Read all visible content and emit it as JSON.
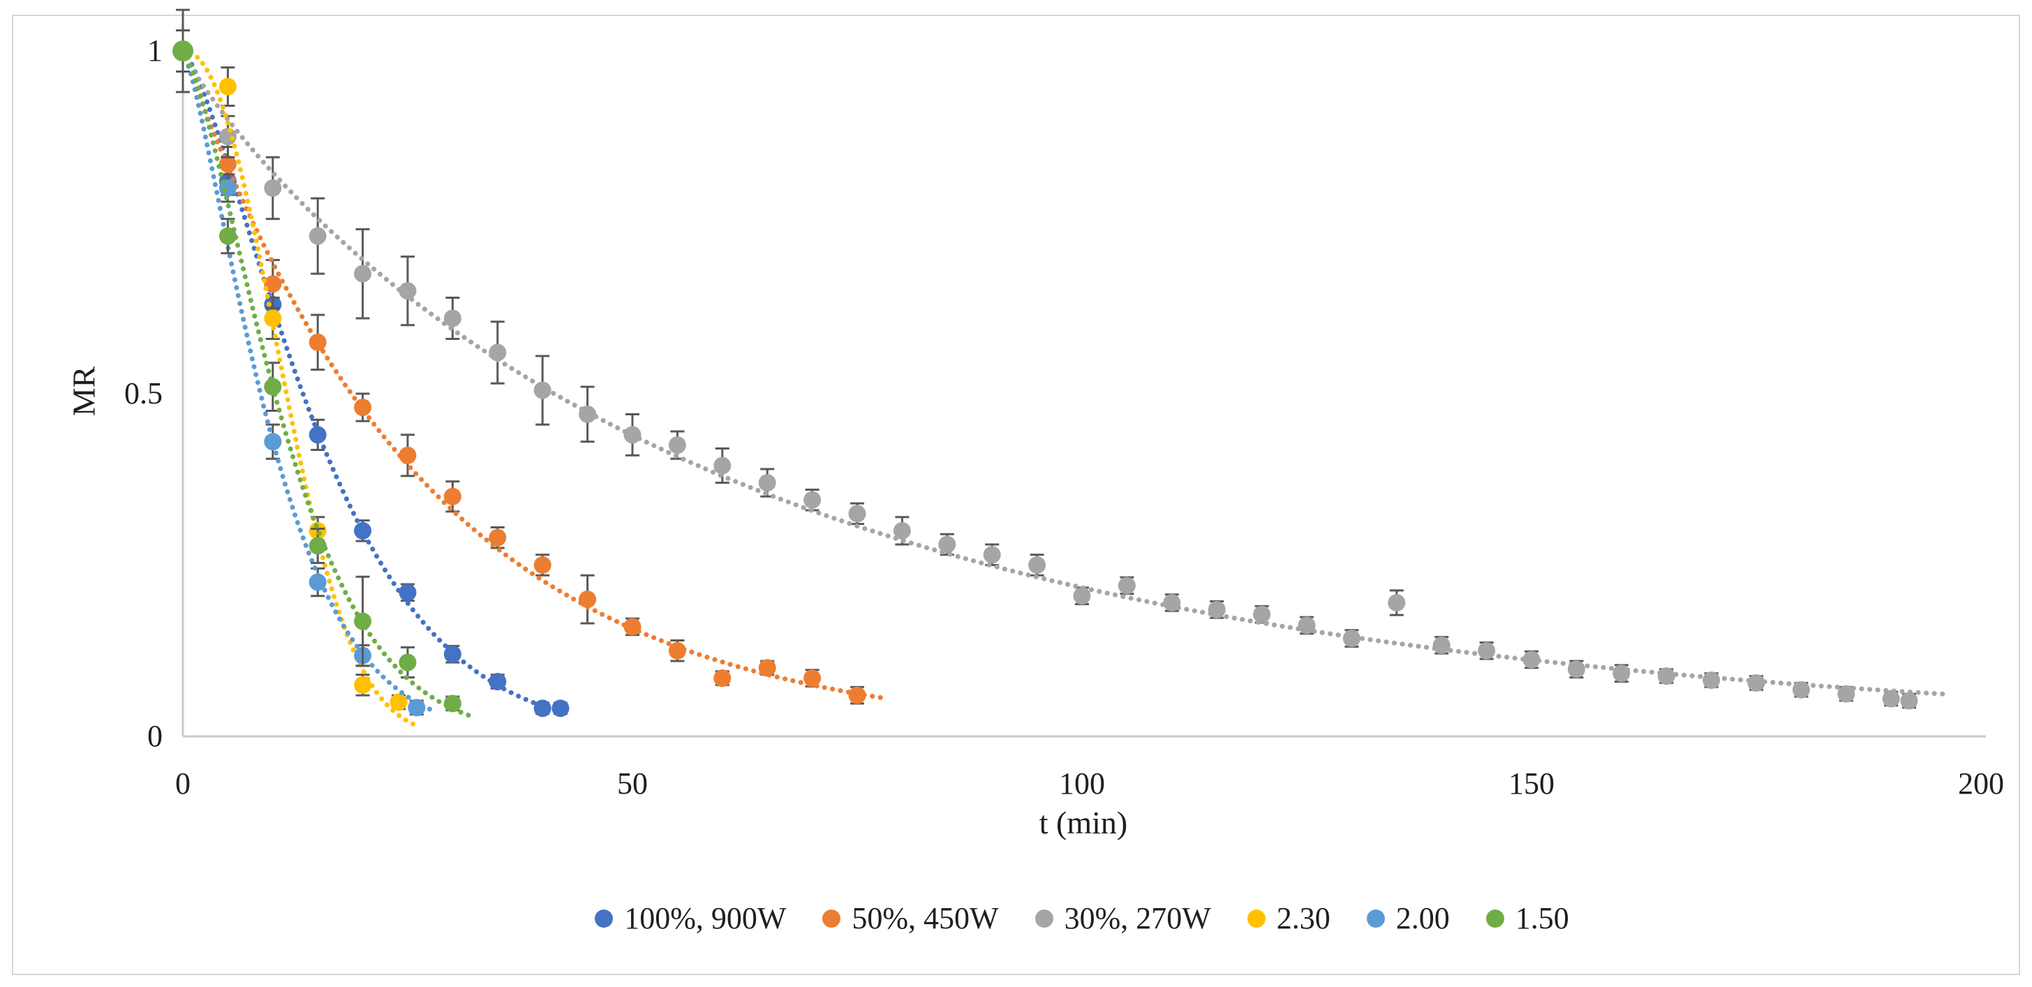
{
  "figure": {
    "background": "#FFFFFF",
    "border_color": "#D6D6D6"
  },
  "chart_data": {
    "type": "scatter",
    "title": "",
    "xlabel": "t (min)",
    "ylabel": "MR",
    "xlim": [
      0,
      200
    ],
    "ylim": [
      0,
      1
    ],
    "x_ticks": [
      "0",
      "50",
      "100",
      "150",
      "200"
    ],
    "x_tick_values": [
      0,
      50,
      100,
      150,
      200
    ],
    "y_ticks": [
      "0",
      "0.5",
      "1"
    ],
    "y_tick_values": [
      0,
      0.5,
      1
    ],
    "grid": false,
    "legend_position": "bottom-center",
    "marker_style": "circle-with-error-bars",
    "trendline_style": "dotted",
    "axis_color": "#C9C9C9",
    "error_bar_color": "#595959",
    "text_color": "#1F1F1F",
    "series": [
      {
        "name": "100%, 900W",
        "color": "#4472C4",
        "fit": {
          "model": "page",
          "k": 0.0199,
          "n": 1.37,
          "t_end": 43
        },
        "points": [
          {
            "t": 0,
            "mr": 1.0,
            "err": 0
          },
          {
            "t": 5,
            "mr": 0.81,
            "err": 0.02
          },
          {
            "t": 10,
            "mr": 0.63,
            "err": 0.025
          },
          {
            "t": 15,
            "mr": 0.44,
            "err": 0.022
          },
          {
            "t": 20,
            "mr": 0.3,
            "err": 0.015
          },
          {
            "t": 25,
            "mr": 0.21,
            "err": 0.012
          },
          {
            "t": 30,
            "mr": 0.12,
            "err": 0.012
          },
          {
            "t": 35,
            "mr": 0.08,
            "err": 0.01
          },
          {
            "t": 40,
            "mr": 0.041,
            "err": 0.008
          },
          {
            "t": 42,
            "mr": 0.041,
            "err": 0.008
          }
        ]
      },
      {
        "name": "50%, 450W",
        "color": "#ED7D31",
        "fit": {
          "model": "page",
          "k": 0.037,
          "n": 1.0,
          "t_end": 78
        },
        "points": [
          {
            "t": 0,
            "mr": 1.0,
            "err": 0.03
          },
          {
            "t": 5,
            "mr": 0.835,
            "err": 0.025
          },
          {
            "t": 10,
            "mr": 0.66,
            "err": 0.035
          },
          {
            "t": 15,
            "mr": 0.575,
            "err": 0.04
          },
          {
            "t": 20,
            "mr": 0.48,
            "err": 0.02
          },
          {
            "t": 25,
            "mr": 0.41,
            "err": 0.03
          },
          {
            "t": 30,
            "mr": 0.35,
            "err": 0.022
          },
          {
            "t": 35,
            "mr": 0.29,
            "err": 0.015
          },
          {
            "t": 40,
            "mr": 0.25,
            "err": 0.015
          },
          {
            "t": 45,
            "mr": 0.2,
            "err": 0.035
          },
          {
            "t": 50,
            "mr": 0.16,
            "err": 0.012
          },
          {
            "t": 55,
            "mr": 0.125,
            "err": 0.015
          },
          {
            "t": 60,
            "mr": 0.085,
            "err": 0.01
          },
          {
            "t": 65,
            "mr": 0.1,
            "err": 0.01
          },
          {
            "t": 70,
            "mr": 0.085,
            "err": 0.012
          },
          {
            "t": 75,
            "mr": 0.06,
            "err": 0.012
          }
        ]
      },
      {
        "name": "30%, 270W",
        "color": "#A5A5A5",
        "fit": {
          "model": "page",
          "k": 0.025,
          "n": 0.893,
          "t_end": 196
        },
        "points": [
          {
            "t": 0,
            "mr": 1.0,
            "err": 0.06
          },
          {
            "t": 5,
            "mr": 0.875,
            "err": 0.03
          },
          {
            "t": 10,
            "mr": 0.8,
            "err": 0.045
          },
          {
            "t": 15,
            "mr": 0.73,
            "err": 0.055
          },
          {
            "t": 20,
            "mr": 0.675,
            "err": 0.065
          },
          {
            "t": 25,
            "mr": 0.65,
            "err": 0.05
          },
          {
            "t": 30,
            "mr": 0.61,
            "err": 0.03
          },
          {
            "t": 35,
            "mr": 0.56,
            "err": 0.045
          },
          {
            "t": 40,
            "mr": 0.505,
            "err": 0.05
          },
          {
            "t": 45,
            "mr": 0.47,
            "err": 0.04
          },
          {
            "t": 50,
            "mr": 0.44,
            "err": 0.03
          },
          {
            "t": 55,
            "mr": 0.425,
            "err": 0.02
          },
          {
            "t": 60,
            "mr": 0.395,
            "err": 0.025
          },
          {
            "t": 65,
            "mr": 0.37,
            "err": 0.02
          },
          {
            "t": 70,
            "mr": 0.345,
            "err": 0.015
          },
          {
            "t": 75,
            "mr": 0.325,
            "err": 0.015
          },
          {
            "t": 80,
            "mr": 0.3,
            "err": 0.02
          },
          {
            "t": 85,
            "mr": 0.28,
            "err": 0.015
          },
          {
            "t": 90,
            "mr": 0.265,
            "err": 0.015
          },
          {
            "t": 95,
            "mr": 0.25,
            "err": 0.015
          },
          {
            "t": 100,
            "mr": 0.205,
            "err": 0.012
          },
          {
            "t": 105,
            "mr": 0.22,
            "err": 0.012
          },
          {
            "t": 110,
            "mr": 0.195,
            "err": 0.012
          },
          {
            "t": 115,
            "mr": 0.185,
            "err": 0.012
          },
          {
            "t": 120,
            "mr": 0.178,
            "err": 0.012
          },
          {
            "t": 125,
            "mr": 0.162,
            "err": 0.012
          },
          {
            "t": 130,
            "mr": 0.143,
            "err": 0.012
          },
          {
            "t": 135,
            "mr": 0.195,
            "err": 0.018
          },
          {
            "t": 140,
            "mr": 0.133,
            "err": 0.012
          },
          {
            "t": 145,
            "mr": 0.125,
            "err": 0.012
          },
          {
            "t": 150,
            "mr": 0.112,
            "err": 0.012
          },
          {
            "t": 155,
            "mr": 0.098,
            "err": 0.012
          },
          {
            "t": 160,
            "mr": 0.092,
            "err": 0.012
          },
          {
            "t": 165,
            "mr": 0.088,
            "err": 0.01
          },
          {
            "t": 170,
            "mr": 0.082,
            "err": 0.01
          },
          {
            "t": 175,
            "mr": 0.078,
            "err": 0.01
          },
          {
            "t": 180,
            "mr": 0.068,
            "err": 0.01
          },
          {
            "t": 185,
            "mr": 0.062,
            "err": 0.01
          },
          {
            "t": 190,
            "mr": 0.055,
            "err": 0.01
          },
          {
            "t": 192,
            "mr": 0.052,
            "err": 0.01
          }
        ]
      },
      {
        "name": "2.30",
        "color": "#FFC000",
        "fit": {
          "model": "page",
          "k": 0.0032,
          "n": 2.2,
          "t_end": 26
        },
        "points": [
          {
            "t": 0,
            "mr": 1.0,
            "err": 0
          },
          {
            "t": 5,
            "mr": 0.948,
            "err": 0.028
          },
          {
            "t": 10,
            "mr": 0.61,
            "err": 0.03
          },
          {
            "t": 15,
            "mr": 0.3,
            "err": 0.02
          },
          {
            "t": 20,
            "mr": 0.075,
            "err": 0.015
          },
          {
            "t": 24,
            "mr": 0.05,
            "err": 0.01
          }
        ]
      },
      {
        "name": "2.00",
        "color": "#5B9BD5",
        "fit": {
          "model": "page",
          "k": 0.0394,
          "n": 1.33,
          "t_end": 28
        },
        "points": [
          {
            "t": 0,
            "mr": 1.0,
            "err": 0
          },
          {
            "t": 5,
            "mr": 0.8,
            "err": 0.02
          },
          {
            "t": 10,
            "mr": 0.43,
            "err": 0.025
          },
          {
            "t": 15,
            "mr": 0.225,
            "err": 0.02
          },
          {
            "t": 20,
            "mr": 0.118,
            "err": 0.015
          },
          {
            "t": 26,
            "mr": 0.042,
            "err": 0.01
          }
        ]
      },
      {
        "name": "1.50",
        "color": "#70AD47",
        "fit": {
          "model": "page",
          "k": 0.0256,
          "n": 1.42,
          "t_end": 32
        },
        "points": [
          {
            "t": 0,
            "mr": 1.0,
            "err": 0
          },
          {
            "t": 5,
            "mr": 0.73,
            "err": 0.025
          },
          {
            "t": 10,
            "mr": 0.51,
            "err": 0.035
          },
          {
            "t": 15,
            "mr": 0.278,
            "err": 0.025
          },
          {
            "t": 20,
            "mr": 0.168,
            "err": 0.065
          },
          {
            "t": 25,
            "mr": 0.108,
            "err": 0.022
          },
          {
            "t": 30,
            "mr": 0.048,
            "err": 0.01
          }
        ]
      }
    ]
  }
}
